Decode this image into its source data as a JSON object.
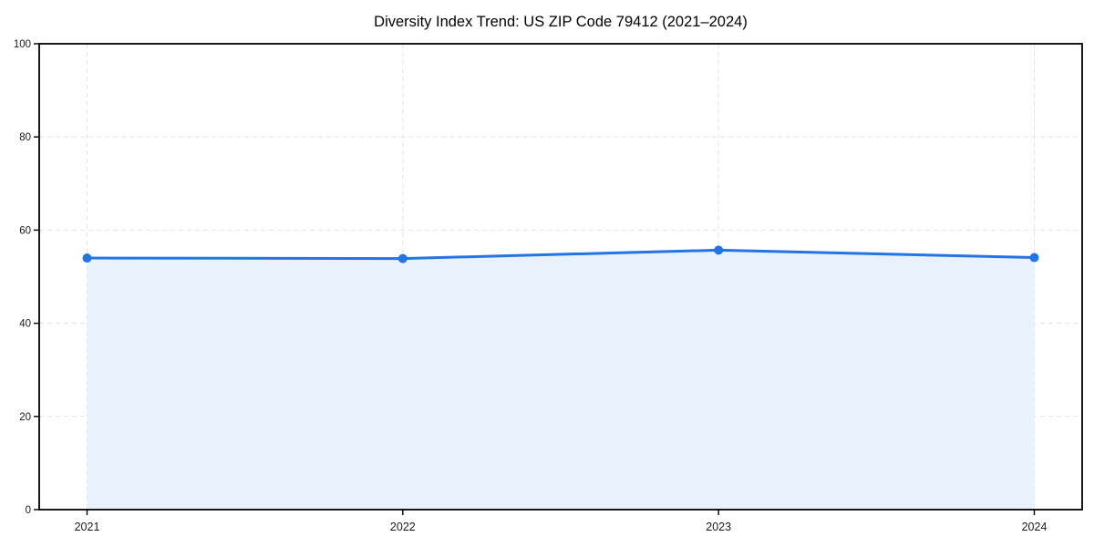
{
  "chart_data": {
    "type": "area",
    "title": "Diversity Index Trend: US ZIP Code 79412 (2021–2024)",
    "x": [
      2021,
      2022,
      2023,
      2024
    ],
    "series": [
      {
        "name": "Diversity Index",
        "values": [
          54.0,
          53.9,
          55.7,
          54.1
        ]
      }
    ],
    "xlabel": "",
    "ylabel": "",
    "ylim": [
      0,
      100
    ],
    "yticks": [
      0,
      20,
      40,
      60,
      80,
      100
    ],
    "xtick_labels": [
      "2021",
      "2022",
      "2023",
      "2024"
    ],
    "grid": true,
    "grid_style": "dashed",
    "legend_position": "none",
    "markers": true,
    "colors": {
      "line": "#2374e4",
      "marker": "#2374e4",
      "area_fill": "#e9f1fd",
      "grid": "#e3e3e3",
      "axis": "#000000",
      "tick_text": "#1a1a1a",
      "title_text": "#000000",
      "background": "#ffffff"
    }
  }
}
